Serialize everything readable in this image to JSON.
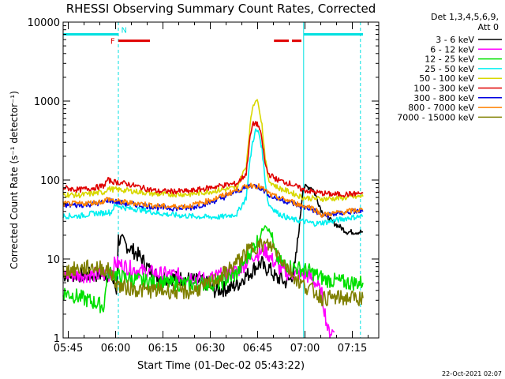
{
  "chart_data": {
    "type": "line",
    "title": "RHESSI Observing Summary Count Rates, Corrected",
    "xlabel": "Start Time (01-Dec-02 05:43:22)",
    "ylabel": "Corrected Count Rate (s⁻¹ detector⁻¹)",
    "yscale": "log",
    "ylim": [
      1,
      10000
    ],
    "xlim_minutes": [
      0,
      100
    ],
    "x_ticks": [
      {
        "t": 1.63,
        "label": "05:45"
      },
      {
        "t": 16.63,
        "label": "06:00"
      },
      {
        "t": 31.63,
        "label": "06:15"
      },
      {
        "t": 46.63,
        "label": "06:30"
      },
      {
        "t": 61.63,
        "label": "06:45"
      },
      {
        "t": 76.63,
        "label": "07:00"
      },
      {
        "t": 91.63,
        "label": "07:15"
      }
    ],
    "y_ticks": [
      {
        "v": 1,
        "label": "1"
      },
      {
        "v": 10,
        "label": "10"
      },
      {
        "v": 100,
        "label": "100"
      },
      {
        "v": 1000,
        "label": "1000"
      },
      {
        "v": 10000,
        "label": "10000"
      }
    ],
    "legend_header": [
      "Det 1,3,4,5,6,9,",
      "Att 0"
    ],
    "series": [
      {
        "name": "3 - 6 keV",
        "color": "#000000",
        "points": [
          [
            0,
            6.3
          ],
          [
            15,
            6.3
          ],
          [
            16.9,
            4
          ],
          [
            17.5,
            18
          ],
          [
            20,
            15
          ],
          [
            23,
            12
          ],
          [
            25,
            10
          ],
          [
            27,
            7.5
          ],
          [
            30,
            6
          ],
          [
            40,
            5.5
          ],
          [
            45,
            5
          ],
          [
            48,
            4
          ],
          [
            53,
            4.3
          ],
          [
            56,
            5
          ],
          [
            57,
            5.8
          ],
          [
            59,
            6.5
          ],
          [
            61,
            8
          ],
          [
            63,
            9
          ],
          [
            64,
            7
          ],
          [
            65,
            8
          ],
          [
            67,
            6
          ],
          [
            68,
            5.5
          ],
          [
            69,
            6
          ],
          [
            70,
            5
          ],
          [
            72,
            5.5
          ],
          [
            73.5,
            8
          ],
          [
            75,
            30
          ],
          [
            76,
            80
          ],
          [
            77,
            82
          ],
          [
            79,
            80
          ],
          [
            82,
            40
          ],
          [
            85,
            30
          ],
          [
            88,
            25
          ],
          [
            90,
            22
          ],
          [
            95,
            22
          ]
        ]
      },
      {
        "name": "6 - 12 keV",
        "color": "#ff00ff",
        "points": [
          [
            0,
            6.3
          ],
          [
            15,
            6.3
          ],
          [
            16.5,
            9
          ],
          [
            18,
            8.5
          ],
          [
            20,
            8
          ],
          [
            22,
            7.5
          ],
          [
            25,
            7
          ],
          [
            30,
            6.5
          ],
          [
            40,
            6
          ],
          [
            45,
            5.5
          ],
          [
            50,
            6.2
          ],
          [
            55,
            7
          ],
          [
            58,
            9
          ],
          [
            60,
            11
          ],
          [
            62,
            12
          ],
          [
            64,
            13
          ],
          [
            66,
            10
          ],
          [
            68,
            8
          ],
          [
            70,
            7
          ],
          [
            72,
            6.5
          ],
          [
            75,
            6.5
          ],
          [
            78,
            6
          ],
          [
            80,
            5
          ],
          [
            82,
            3.5
          ],
          [
            84,
            1.2
          ],
          [
            86,
            1.2
          ]
        ]
      },
      {
        "name": "12 - 25 keV",
        "color": "#00e000",
        "points": [
          [
            0,
            3.8
          ],
          [
            5,
            3.3
          ],
          [
            10,
            2.8
          ],
          [
            13,
            2.5
          ],
          [
            14,
            7
          ],
          [
            16,
            6.5
          ],
          [
            18,
            6
          ],
          [
            22,
            5.5
          ],
          [
            30,
            5
          ],
          [
            40,
            4.8
          ],
          [
            50,
            5
          ],
          [
            55,
            6.5
          ],
          [
            58,
            10
          ],
          [
            60,
            14
          ],
          [
            62,
            18
          ],
          [
            64,
            28
          ],
          [
            66,
            20
          ],
          [
            67,
            12
          ],
          [
            68,
            10
          ],
          [
            69,
            9
          ],
          [
            72,
            8
          ],
          [
            78,
            7
          ],
          [
            83,
            5.5
          ],
          [
            90,
            5
          ],
          [
            95,
            5
          ]
        ]
      },
      {
        "name": "25 - 50 keV",
        "color": "#00f0f0",
        "points": [
          [
            0,
            35
          ],
          [
            5,
            35
          ],
          [
            10,
            38
          ],
          [
            13,
            38
          ],
          [
            14,
            40
          ],
          [
            15,
            38
          ],
          [
            16,
            45
          ],
          [
            17,
            48
          ],
          [
            20,
            44
          ],
          [
            25,
            42
          ],
          [
            30,
            38
          ],
          [
            35,
            36
          ],
          [
            40,
            35
          ],
          [
            45,
            34
          ],
          [
            50,
            34
          ],
          [
            55,
            37
          ],
          [
            58,
            60
          ],
          [
            59,
            150
          ],
          [
            60,
            300
          ],
          [
            61,
            420
          ],
          [
            62,
            400
          ],
          [
            63,
            250
          ],
          [
            64,
            100
          ],
          [
            65,
            50
          ],
          [
            68,
            38
          ],
          [
            72,
            32
          ],
          [
            76,
            30
          ],
          [
            80,
            28
          ],
          [
            85,
            30
          ],
          [
            90,
            33
          ],
          [
            95,
            35
          ]
        ]
      },
      {
        "name": "50 - 100 keV",
        "color": "#d8d800",
        "points": [
          [
            0,
            66
          ],
          [
            5,
            64
          ],
          [
            10,
            68
          ],
          [
            13,
            70
          ],
          [
            14,
            78
          ],
          [
            16,
            76
          ],
          [
            20,
            74
          ],
          [
            25,
            70
          ],
          [
            30,
            66
          ],
          [
            40,
            66
          ],
          [
            45,
            70
          ],
          [
            50,
            75
          ],
          [
            55,
            80
          ],
          [
            58,
            150
          ],
          [
            59,
            400
          ],
          [
            60,
            850
          ],
          [
            61,
            1050
          ],
          [
            62,
            900
          ],
          [
            63,
            500
          ],
          [
            64,
            200
          ],
          [
            65,
            100
          ],
          [
            68,
            80
          ],
          [
            72,
            70
          ],
          [
            76,
            60
          ],
          [
            80,
            58
          ],
          [
            85,
            58
          ],
          [
            90,
            60
          ],
          [
            95,
            62
          ]
        ]
      },
      {
        "name": "100 - 300 keV",
        "color": "#e00000",
        "points": [
          [
            0,
            80
          ],
          [
            5,
            75
          ],
          [
            10,
            80
          ],
          [
            13,
            85
          ],
          [
            14,
            100
          ],
          [
            16,
            95
          ],
          [
            20,
            90
          ],
          [
            25,
            80
          ],
          [
            30,
            72
          ],
          [
            40,
            72
          ],
          [
            45,
            78
          ],
          [
            50,
            85
          ],
          [
            55,
            90
          ],
          [
            58,
            120
          ],
          [
            59,
            300
          ],
          [
            60,
            500
          ],
          [
            61,
            530
          ],
          [
            62,
            480
          ],
          [
            63,
            320
          ],
          [
            64,
            160
          ],
          [
            65,
            120
          ],
          [
            68,
            100
          ],
          [
            72,
            90
          ],
          [
            76,
            75
          ],
          [
            80,
            70
          ],
          [
            85,
            66
          ],
          [
            90,
            66
          ],
          [
            95,
            68
          ]
        ]
      },
      {
        "name": "300 - 800 keV",
        "color": "#0000e0",
        "points": [
          [
            0,
            48
          ],
          [
            5,
            48
          ],
          [
            10,
            50
          ],
          [
            13,
            52
          ],
          [
            14,
            56
          ],
          [
            17,
            53
          ],
          [
            20,
            50
          ],
          [
            25,
            48
          ],
          [
            30,
            45
          ],
          [
            35,
            44
          ],
          [
            40,
            44
          ],
          [
            45,
            50
          ],
          [
            50,
            58
          ],
          [
            55,
            72
          ],
          [
            58,
            80
          ],
          [
            59,
            85
          ],
          [
            60,
            85
          ],
          [
            62,
            82
          ],
          [
            64,
            72
          ],
          [
            66,
            62
          ],
          [
            68,
            58
          ],
          [
            72,
            52
          ],
          [
            76,
            45
          ],
          [
            78,
            44
          ],
          [
            80,
            40
          ],
          [
            82,
            35
          ],
          [
            84,
            36
          ],
          [
            88,
            38
          ],
          [
            92,
            40
          ],
          [
            95,
            40
          ]
        ]
      },
      {
        "name": "800 - 7000 keV",
        "color": "#ff8000",
        "points": [
          [
            0,
            50
          ],
          [
            5,
            50
          ],
          [
            10,
            52
          ],
          [
            13,
            54
          ],
          [
            14,
            58
          ],
          [
            17,
            54
          ],
          [
            20,
            52
          ],
          [
            25,
            50
          ],
          [
            30,
            47
          ],
          [
            35,
            46
          ],
          [
            40,
            47
          ],
          [
            45,
            53
          ],
          [
            50,
            62
          ],
          [
            55,
            75
          ],
          [
            58,
            82
          ],
          [
            59,
            85
          ],
          [
            60,
            86
          ],
          [
            62,
            83
          ],
          [
            64,
            74
          ],
          [
            66,
            64
          ],
          [
            68,
            60
          ],
          [
            72,
            54
          ],
          [
            76,
            47
          ],
          [
            78,
            46
          ],
          [
            80,
            42
          ],
          [
            82,
            36
          ],
          [
            84,
            37
          ],
          [
            88,
            39
          ],
          [
            92,
            41
          ],
          [
            95,
            42
          ]
        ]
      },
      {
        "name": "7000 - 15000 keV",
        "color": "#808000",
        "points": [
          [
            0,
            7
          ],
          [
            5,
            7.5
          ],
          [
            10,
            8
          ],
          [
            13,
            7.5
          ],
          [
            15,
            7
          ],
          [
            16,
            5.5
          ],
          [
            18,
            4.5
          ],
          [
            25,
            4
          ],
          [
            30,
            4
          ],
          [
            40,
            3.8
          ],
          [
            45,
            4.5
          ],
          [
            50,
            6
          ],
          [
            55,
            9
          ],
          [
            58,
            12
          ],
          [
            60,
            14
          ],
          [
            62,
            15
          ],
          [
            64,
            15
          ],
          [
            66,
            14.5
          ],
          [
            68,
            12
          ],
          [
            70,
            9
          ],
          [
            72,
            7
          ],
          [
            75,
            5
          ],
          [
            78,
            4.2
          ],
          [
            80,
            3.8
          ],
          [
            82,
            3.2
          ],
          [
            90,
            3.2
          ],
          [
            95,
            3.2
          ]
        ]
      }
    ],
    "state_bars": [
      {
        "kind": "night",
        "color": "#00e0e0",
        "t_start": 0,
        "t_end": 17.5,
        "value": 7000
      },
      {
        "kind": "night",
        "color": "#00e0e0",
        "t_start": 76.2,
        "t_end": 95,
        "value": 7000
      },
      {
        "kind": "flag",
        "color": "#e00000",
        "t_start": 17.5,
        "t_end": 27.5,
        "value": 5800
      },
      {
        "kind": "flag",
        "color": "#e00000",
        "t_start": 66.8,
        "t_end": 71.5,
        "value": 5800
      },
      {
        "kind": "flag",
        "color": "#e00000",
        "t_start": 72.5,
        "t_end": 75.5,
        "value": 5800
      }
    ],
    "markers": [
      {
        "label": "F",
        "color": "#e00000",
        "t": 15.7,
        "value": 5800
      },
      {
        "label": "N",
        "color": "#00e0e0",
        "t": 19.3,
        "value": 8000
      }
    ],
    "vlines": [
      {
        "t": 0,
        "color": "#00e0e0",
        "style": "solid"
      },
      {
        "t": 17.5,
        "color": "#00e0e0",
        "style": "dashed"
      },
      {
        "t": 76.2,
        "color": "#00e0e0",
        "style": "solid"
      },
      {
        "t": 94.2,
        "color": "#00e0e0",
        "style": "dashed"
      }
    ]
  },
  "footer_timestamp": "22-Oct-2021 02:07"
}
